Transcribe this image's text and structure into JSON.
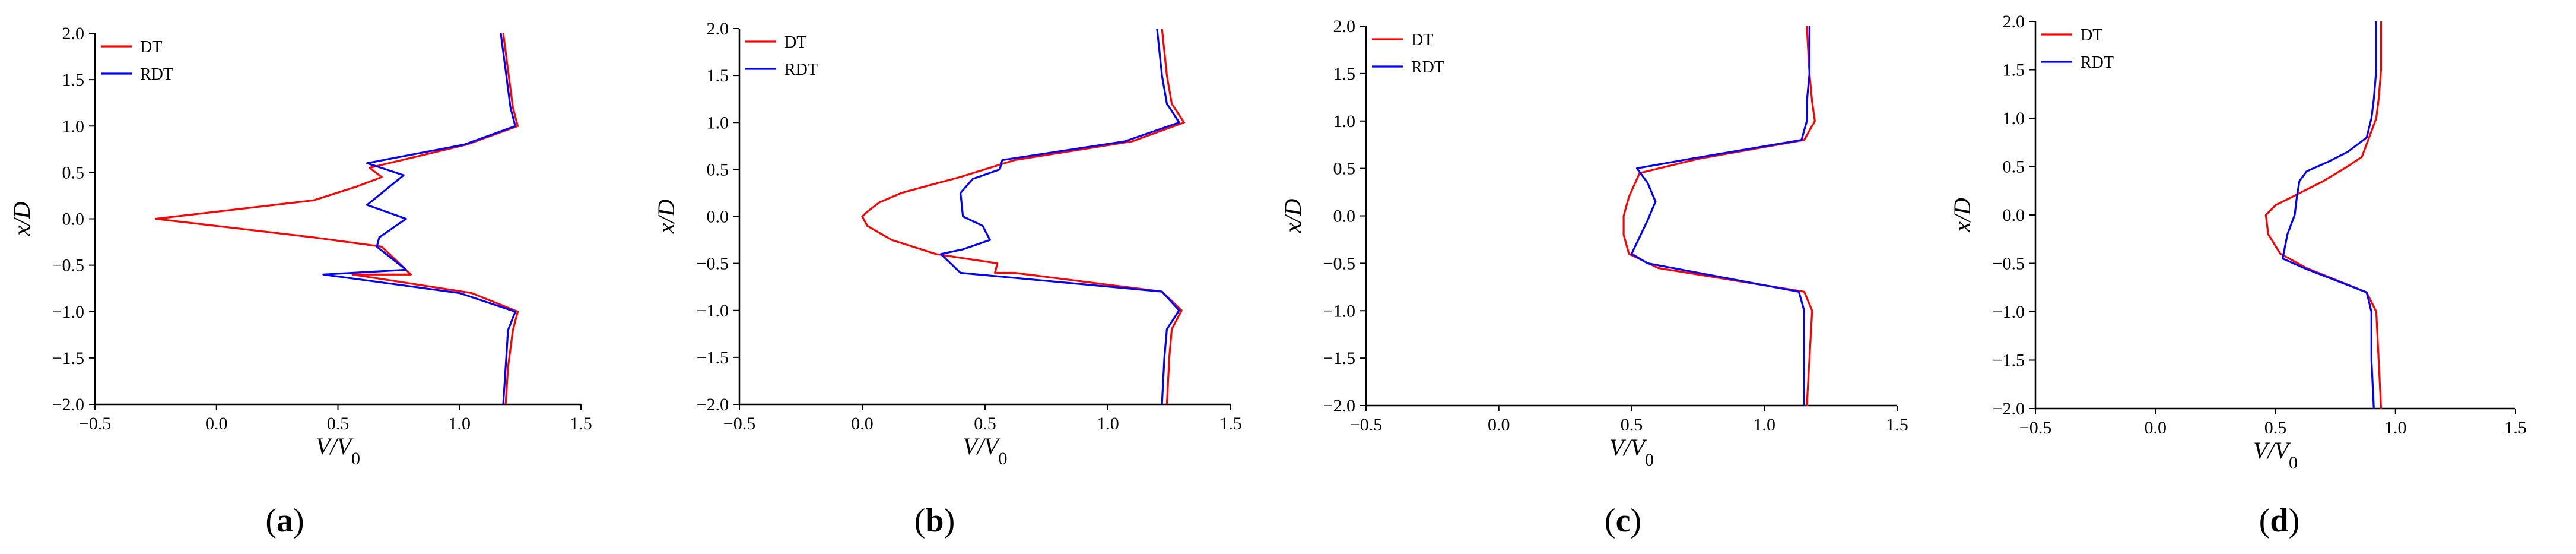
{
  "colors": {
    "DT": "#ff0000",
    "RDT": "#0000ff",
    "axis": "#000000"
  },
  "legend": [
    "DT",
    "RDT"
  ],
  "chart_data": [
    {
      "type": "line",
      "panel_label": "(a)",
      "xlabel": "V/V0",
      "ylabel": "x/D",
      "xlim": [
        -0.5,
        1.5
      ],
      "ylim": [
        -2.0,
        2.0
      ],
      "xticks": [
        "-0.5",
        "0.0",
        "0.5",
        "1.0",
        "1.5"
      ],
      "yticks": [
        "-2.0",
        "-1.5",
        "-1.0",
        "-0.5",
        "0.0",
        "0.5",
        "1.0",
        "1.5",
        "2.0"
      ],
      "legend_position": "top-left",
      "series": [
        {
          "name": "DT",
          "color": "#ff0000",
          "x": [
            1.18,
            1.2,
            1.22,
            1.24,
            1.03,
            0.63,
            0.68,
            0.58,
            0.4,
            -0.25,
            0.4,
            0.68,
            0.8,
            0.56,
            1.05,
            1.24,
            1.22,
            1.2,
            1.19
          ],
          "y": [
            2.0,
            1.6,
            1.2,
            1.0,
            0.8,
            0.55,
            0.45,
            0.35,
            0.2,
            0.0,
            -0.2,
            -0.3,
            -0.6,
            -0.6,
            -0.8,
            -1.0,
            -1.2,
            -1.6,
            -2.0
          ]
        },
        {
          "name": "RDT",
          "color": "#0000ff",
          "x": [
            1.17,
            1.19,
            1.21,
            1.23,
            1.02,
            0.62,
            0.77,
            0.62,
            0.78,
            0.67,
            0.66,
            0.78,
            0.44,
            1.0,
            1.23,
            1.2,
            1.19,
            1.18
          ],
          "y": [
            2.0,
            1.6,
            1.2,
            1.0,
            0.8,
            0.6,
            0.47,
            0.15,
            0.0,
            -0.2,
            -0.3,
            -0.55,
            -0.6,
            -0.8,
            -1.0,
            -1.2,
            -1.6,
            -2.0
          ]
        }
      ]
    },
    {
      "type": "line",
      "panel_label": "(b)",
      "xlabel": "V/V0",
      "ylabel": "x/D",
      "xlim": [
        -0.5,
        1.5
      ],
      "ylim": [
        -2.0,
        2.0
      ],
      "xticks": [
        "-0.5",
        "0.0",
        "0.5",
        "1.0",
        "1.5"
      ],
      "yticks": [
        "-2.0",
        "-1.5",
        "-1.0",
        "-0.5",
        "0.0",
        "0.5",
        "1.0",
        "1.5",
        "2.0"
      ],
      "legend_position": "top-left",
      "series": [
        {
          "name": "DT",
          "color": "#ff0000",
          "x": [
            1.22,
            1.24,
            1.26,
            1.31,
            1.1,
            0.62,
            0.4,
            0.3,
            0.16,
            0.07,
            0.02,
            0.0,
            0.02,
            0.12,
            0.3,
            0.55,
            0.54,
            0.62,
            1.22,
            1.3,
            1.26,
            1.25,
            1.24
          ],
          "y": [
            2.0,
            1.5,
            1.2,
            1.0,
            0.8,
            0.6,
            0.42,
            0.35,
            0.25,
            0.15,
            0.05,
            0.0,
            -0.1,
            -0.25,
            -0.4,
            -0.5,
            -0.6,
            -0.6,
            -0.8,
            -1.0,
            -1.2,
            -1.5,
            -2.0
          ]
        },
        {
          "name": "RDT",
          "color": "#0000ff",
          "x": [
            1.2,
            1.22,
            1.24,
            1.29,
            1.07,
            0.57,
            0.56,
            0.45,
            0.4,
            0.41,
            0.49,
            0.52,
            0.41,
            0.32,
            0.4,
            1.22,
            1.29,
            1.24,
            1.23,
            1.22
          ],
          "y": [
            2.0,
            1.5,
            1.2,
            1.0,
            0.8,
            0.6,
            0.5,
            0.4,
            0.25,
            0.0,
            -0.1,
            -0.25,
            -0.35,
            -0.4,
            -0.6,
            -0.8,
            -1.0,
            -1.2,
            -1.5,
            -2.0
          ]
        }
      ]
    },
    {
      "type": "line",
      "panel_label": "(c)",
      "xlabel": "V/V0",
      "ylabel": "x/D",
      "xlim": [
        -0.5,
        1.5
      ],
      "ylim": [
        -2.0,
        2.0
      ],
      "xticks": [
        "-0.5",
        "0.0",
        "0.5",
        "1.0",
        "1.5"
      ],
      "yticks": [
        "-2.0",
        "-1.5",
        "-1.0",
        "-0.5",
        "0.0",
        "0.5",
        "1.0",
        "1.5",
        "2.0"
      ],
      "legend_position": "top-left",
      "series": [
        {
          "name": "DT",
          "color": "#ff0000",
          "x": [
            1.16,
            1.17,
            1.18,
            1.19,
            1.15,
            0.75,
            0.53,
            0.49,
            0.47,
            0.47,
            0.49,
            0.6,
            1.15,
            1.18,
            1.17,
            1.16
          ],
          "y": [
            2.0,
            1.5,
            1.2,
            1.0,
            0.8,
            0.6,
            0.45,
            0.2,
            0.0,
            -0.2,
            -0.4,
            -0.55,
            -0.8,
            -1.0,
            -1.5,
            -2.0
          ]
        },
        {
          "name": "RDT",
          "color": "#0000ff",
          "x": [
            1.17,
            1.17,
            1.16,
            1.16,
            1.14,
            0.72,
            0.52,
            0.56,
            0.59,
            0.56,
            0.5,
            0.56,
            1.13,
            1.15,
            1.15,
            1.15
          ],
          "y": [
            2.0,
            1.5,
            1.2,
            1.0,
            0.8,
            0.6,
            0.5,
            0.35,
            0.15,
            -0.05,
            -0.4,
            -0.5,
            -0.8,
            -1.0,
            -1.5,
            -2.0
          ]
        }
      ]
    },
    {
      "type": "line",
      "panel_label": "(d)",
      "xlabel": "V/V0",
      "ylabel": "x/D",
      "xlim": [
        -0.5,
        1.5
      ],
      "ylim": [
        -2.0,
        2.0
      ],
      "xticks": [
        "-0.5",
        "0.0",
        "0.5",
        "1.0",
        "1.5"
      ],
      "yticks": [
        "-2.0",
        "-1.5",
        "-1.0",
        "-0.5",
        "0.0",
        "0.5",
        "1.0",
        "1.5",
        "2.0"
      ],
      "legend_position": "top-left",
      "series": [
        {
          "name": "DT",
          "color": "#ff0000",
          "x": [
            0.94,
            0.94,
            0.93,
            0.92,
            0.89,
            0.86,
            0.8,
            0.7,
            0.58,
            0.5,
            0.46,
            0.47,
            0.52,
            0.63,
            0.88,
            0.92,
            0.93,
            0.94
          ],
          "y": [
            2.0,
            1.5,
            1.2,
            1.0,
            0.8,
            0.6,
            0.5,
            0.35,
            0.2,
            0.1,
            0.0,
            -0.2,
            -0.4,
            -0.55,
            -0.8,
            -1.0,
            -1.5,
            -2.0
          ]
        },
        {
          "name": "RDT",
          "color": "#0000ff",
          "x": [
            0.92,
            0.92,
            0.91,
            0.9,
            0.88,
            0.8,
            0.72,
            0.63,
            0.6,
            0.59,
            0.58,
            0.55,
            0.53,
            0.62,
            0.88,
            0.9,
            0.9,
            0.91
          ],
          "y": [
            2.0,
            1.5,
            1.2,
            1.0,
            0.8,
            0.65,
            0.55,
            0.45,
            0.35,
            0.2,
            0.0,
            -0.2,
            -0.45,
            -0.55,
            -0.8,
            -1.0,
            -1.5,
            -2.0
          ]
        }
      ]
    }
  ]
}
